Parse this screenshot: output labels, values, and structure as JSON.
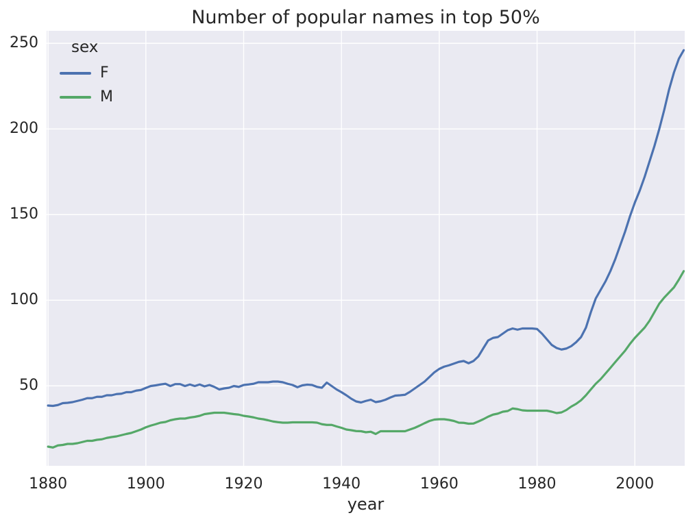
{
  "figure": {
    "title": "Number of popular names in top 50%",
    "xlabel": "year"
  },
  "legend": {
    "title": "sex",
    "entries": [
      {
        "label": "F",
        "color": "#4C72B0"
      },
      {
        "label": "M",
        "color": "#55A868"
      }
    ]
  },
  "chart_data": {
    "type": "line",
    "title": "Number of popular names in top 50%",
    "xlabel": "year",
    "ylabel": "",
    "style": "seaborn-darkgrid",
    "grid": true,
    "background_color": "#EAEAF2",
    "grid_color": "#FFFFFF",
    "text_color": "#262626",
    "legend_title": "sex",
    "legend_position": "upper left",
    "xlim": [
      1879.7,
      2010.2
    ],
    "ylim": [
      3.3,
      257.3
    ],
    "xticks": [
      1880,
      1900,
      1920,
      1940,
      1960,
      1980,
      2000
    ],
    "yticks": [
      50,
      100,
      150,
      200,
      250
    ],
    "x": [
      1880,
      1881,
      1882,
      1883,
      1884,
      1885,
      1886,
      1887,
      1888,
      1889,
      1890,
      1891,
      1892,
      1893,
      1894,
      1895,
      1896,
      1897,
      1898,
      1899,
      1900,
      1901,
      1902,
      1903,
      1904,
      1905,
      1906,
      1907,
      1908,
      1909,
      1910,
      1911,
      1912,
      1913,
      1914,
      1915,
      1916,
      1917,
      1918,
      1919,
      1920,
      1921,
      1922,
      1923,
      1924,
      1925,
      1926,
      1927,
      1928,
      1929,
      1930,
      1931,
      1932,
      1933,
      1934,
      1935,
      1936,
      1937,
      1938,
      1939,
      1940,
      1941,
      1942,
      1943,
      1944,
      1945,
      1946,
      1947,
      1948,
      1949,
      1950,
      1951,
      1952,
      1953,
      1954,
      1955,
      1956,
      1957,
      1958,
      1959,
      1960,
      1961,
      1962,
      1963,
      1964,
      1965,
      1966,
      1967,
      1968,
      1969,
      1970,
      1971,
      1972,
      1973,
      1974,
      1975,
      1976,
      1977,
      1978,
      1979,
      1980,
      1981,
      1982,
      1983,
      1984,
      1985,
      1986,
      1987,
      1988,
      1989,
      1990,
      1991,
      1992,
      1993,
      1994,
      1995,
      1996,
      1997,
      1998,
      1999,
      2000,
      2001,
      2002,
      2003,
      2004,
      2005,
      2006,
      2007,
      2008,
      2009,
      2010
    ],
    "series": [
      {
        "name": "F",
        "color": "#4C72B0",
        "values": [
          38.5,
          38.3,
          38.8,
          39.9,
          40.1,
          40.5,
          41.2,
          41.9,
          42.8,
          42.8,
          43.6,
          43.6,
          44.5,
          44.5,
          45.2,
          45.4,
          46.3,
          46.3,
          47.2,
          47.6,
          48.8,
          49.9,
          50.3,
          50.8,
          51.2,
          49.9,
          51.0,
          51.0,
          49.9,
          50.8,
          49.9,
          50.8,
          49.7,
          50.5,
          49.4,
          47.9,
          48.5,
          48.9,
          49.9,
          49.4,
          50.5,
          50.8,
          51.2,
          52.1,
          52.1,
          52.1,
          52.5,
          52.5,
          52.1,
          51.2,
          50.5,
          49.2,
          50.3,
          50.7,
          50.5,
          49.4,
          48.9,
          51.9,
          49.9,
          47.9,
          46.3,
          44.5,
          42.5,
          40.9,
          40.3,
          41.2,
          41.9,
          40.5,
          41.0,
          41.9,
          43.2,
          44.3,
          44.5,
          44.8,
          46.5,
          48.5,
          50.5,
          52.5,
          55.2,
          57.9,
          59.9,
          61.2,
          62.0,
          63.0,
          64.0,
          64.5,
          63.2,
          64.5,
          67.2,
          71.9,
          76.5,
          78.0,
          78.5,
          80.5,
          82.5,
          83.5,
          82.8,
          83.5,
          83.5,
          83.5,
          83.2,
          80.5,
          77.2,
          73.9,
          72.1,
          71.2,
          71.8,
          73.2,
          75.5,
          78.5,
          84.0,
          93.0,
          101.0,
          106.0,
          111.0,
          117.0,
          124.0,
          132.0,
          140.0,
          149.0,
          157.0,
          164.0,
          172.0,
          181.0,
          190.0,
          200.0,
          211.0,
          223.0,
          233.0,
          241.0,
          246.0
        ]
      },
      {
        "name": "M",
        "color": "#55A868",
        "values": [
          14.5,
          14.0,
          15.2,
          15.5,
          16.1,
          16.1,
          16.5,
          17.2,
          17.9,
          17.9,
          18.5,
          18.8,
          19.6,
          20.1,
          20.5,
          21.2,
          21.9,
          22.5,
          23.5,
          24.5,
          25.8,
          26.8,
          27.6,
          28.5,
          28.9,
          29.9,
          30.5,
          30.9,
          30.9,
          31.5,
          31.9,
          32.5,
          33.5,
          33.9,
          34.3,
          34.3,
          34.3,
          33.9,
          33.5,
          33.2,
          32.5,
          32.1,
          31.6,
          30.9,
          30.5,
          29.9,
          29.2,
          28.8,
          28.5,
          28.5,
          28.7,
          28.7,
          28.7,
          28.7,
          28.7,
          28.5,
          27.6,
          27.2,
          27.2,
          26.3,
          25.5,
          24.5,
          24.1,
          23.6,
          23.5,
          22.9,
          23.2,
          21.9,
          23.5,
          23.5,
          23.5,
          23.5,
          23.5,
          23.5,
          24.5,
          25.5,
          26.8,
          28.2,
          29.5,
          30.3,
          30.5,
          30.5,
          30.1,
          29.5,
          28.5,
          28.4,
          27.9,
          28.0,
          29.2,
          30.5,
          32.0,
          33.2,
          33.8,
          34.9,
          35.3,
          36.8,
          36.4,
          35.7,
          35.5,
          35.5,
          35.5,
          35.5,
          35.5,
          34.9,
          34.1,
          34.5,
          35.9,
          37.9,
          39.5,
          41.6,
          44.5,
          47.9,
          51.2,
          53.9,
          57.2,
          60.5,
          63.9,
          67.2,
          70.5,
          74.5,
          78.0,
          81.0,
          84.0,
          88.0,
          93.0,
          98.0,
          101.5,
          104.5,
          107.5,
          112.0,
          117.0
        ]
      }
    ]
  }
}
